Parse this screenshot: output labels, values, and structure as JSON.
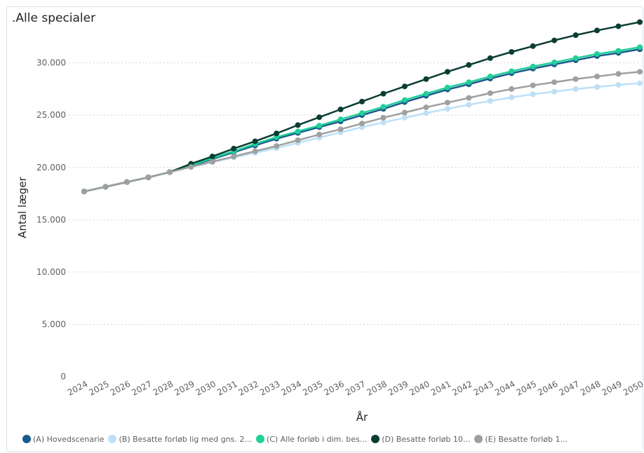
{
  "chart_data": {
    "type": "line",
    "title": ".Alle specialer",
    "xlabel": "År",
    "ylabel": "Antal læger",
    "ylim": [
      0,
      34000
    ],
    "yticks": [
      0,
      5000,
      10000,
      15000,
      20000,
      25000,
      30000
    ],
    "ytick_labels": [
      "0",
      "5.000",
      "10.000",
      "15.000",
      "20.000",
      "25.000",
      "30.000"
    ],
    "grid": true,
    "legend_position": "bottom",
    "x": [
      2024,
      2025,
      2026,
      2027,
      2028,
      2029,
      2030,
      2031,
      2032,
      2033,
      2034,
      2035,
      2036,
      2037,
      2038,
      2039,
      2040,
      2041,
      2042,
      2043,
      2044,
      2045,
      2046,
      2047,
      2048,
      2049,
      2050
    ],
    "series": [
      {
        "name": "(A) Hovedscenarie",
        "legend_label": "(A) Hovedscenarie",
        "color": "#1a5a8c",
        "values": [
          17700,
          18150,
          18600,
          19050,
          19550,
          20150,
          20800,
          21450,
          22100,
          22750,
          23300,
          23850,
          24400,
          25000,
          25600,
          26250,
          26850,
          27450,
          27950,
          28500,
          29000,
          29450,
          29850,
          30250,
          30650,
          30950,
          31300
        ]
      },
      {
        "name": "(B) Besatte forløb lig med gns. 2...",
        "legend_label": "(B) Besatte forløb lig med gns. 2...",
        "color": "#bde0f7",
        "values": [
          17700,
          18150,
          18600,
          19050,
          19550,
          20050,
          20500,
          20950,
          21400,
          21850,
          22350,
          22850,
          23350,
          23850,
          24300,
          24750,
          25200,
          25600,
          26000,
          26350,
          26700,
          27000,
          27250,
          27500,
          27700,
          27900,
          28050
        ]
      },
      {
        "name": "(C) Alle forløb i dim. bes...",
        "legend_label": "(C) Alle forløb i dim. bes...",
        "color": "#1fd09a",
        "values": [
          17700,
          18150,
          18600,
          19050,
          19550,
          20200,
          20900,
          21550,
          22250,
          22900,
          23450,
          24000,
          24600,
          25200,
          25800,
          26450,
          27050,
          27650,
          28150,
          28700,
          29200,
          29650,
          30050,
          30450,
          30850,
          31150,
          31500
        ]
      },
      {
        "name": "(D) Besatte forløb 10...",
        "legend_label": "(D) Besatte forløb 10...",
        "color": "#0b3d33",
        "values": [
          17700,
          18150,
          18600,
          19050,
          19550,
          20350,
          21050,
          21800,
          22500,
          23250,
          24050,
          24800,
          25550,
          26300,
          27050,
          27750,
          28450,
          29150,
          29800,
          30450,
          31050,
          31600,
          32150,
          32650,
          33100,
          33500,
          33900
        ]
      },
      {
        "name": "(E) Besatte forløb 1...",
        "legend_label": "(E) Besatte forløb 1...",
        "color": "#a0a0a0",
        "values": [
          17700,
          18150,
          18600,
          19050,
          19550,
          20050,
          20550,
          21050,
          21550,
          22050,
          22600,
          23150,
          23650,
          24200,
          24750,
          25250,
          25750,
          26200,
          26650,
          27100,
          27500,
          27850,
          28150,
          28450,
          28700,
          28950,
          29150
        ]
      }
    ]
  }
}
